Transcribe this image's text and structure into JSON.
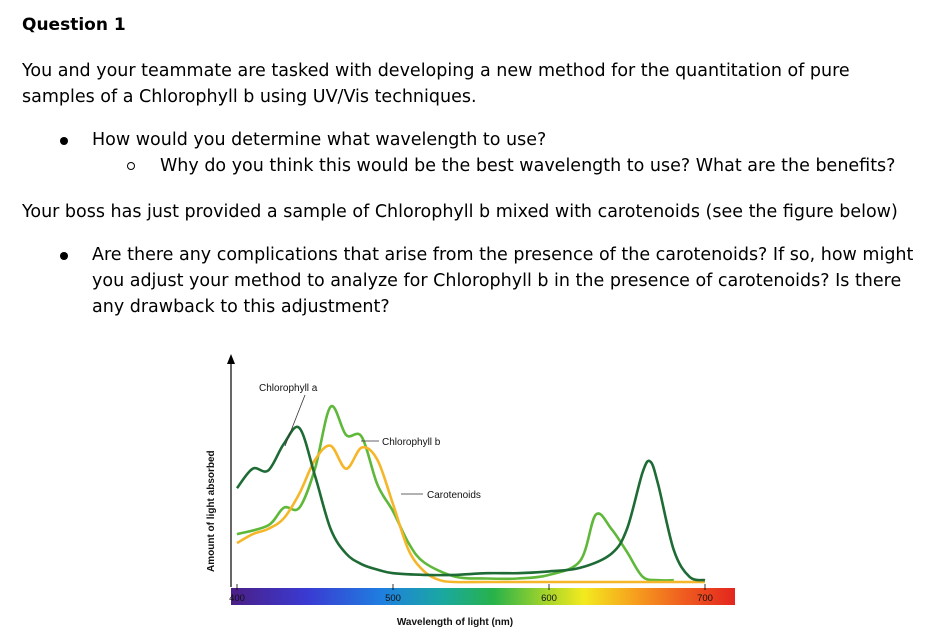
{
  "question": {
    "heading": "Question 1",
    "intro": "You and your teammate are tasked with developing a new method for the quantitation of pure samples of a Chlorophyll b using UV/Vis techniques.",
    "bullet1": "How would you determine what wavelength to use?",
    "sub_bullet1": "Why do you think this would be the best wavelength to use?  What are the benefits?",
    "boss_text": "Your boss has just provided a sample of Chlorophyll b mixed with carotenoids (see the figure below)",
    "bullet2": "Are there any complications that arise from the presence of the carotenoids?  If so, how might you adjust your method to analyze for Chlorophyll b in the presence of carotenoids? Is there any drawback to this adjustment?"
  },
  "chart_data": {
    "type": "line",
    "xlabel": "Wavelength of light (nm)",
    "ylabel": "Amount of light absorbed",
    "xlim": [
      400,
      700
    ],
    "x_ticks": [
      "400",
      "500",
      "600",
      "700"
    ],
    "x_axis_spectrum_bar": true,
    "y_ticks": [],
    "grid": false,
    "annotations": [
      "Chlorophyll a",
      "Chlorophyll b",
      "Carotenoids"
    ],
    "series": [
      {
        "name": "Chlorophyll a",
        "color": "#1e6b35",
        "x": [
          400,
          410,
          420,
          430,
          440,
          450,
          460,
          470,
          480,
          490,
          500,
          520,
          540,
          560,
          580,
          600,
          620,
          640,
          650,
          660,
          665,
          670,
          680,
          690,
          700
        ],
        "y": [
          0.53,
          0.64,
          0.63,
          0.78,
          0.87,
          0.6,
          0.3,
          0.16,
          0.1,
          0.07,
          0.05,
          0.04,
          0.04,
          0.05,
          0.05,
          0.06,
          0.08,
          0.16,
          0.3,
          0.62,
          0.68,
          0.55,
          0.18,
          0.03,
          0.01
        ]
      },
      {
        "name": "Chlorophyll b",
        "color": "#5fb83a",
        "x": [
          400,
          420,
          430,
          440,
          450,
          460,
          470,
          480,
          490,
          500,
          510,
          520,
          540,
          560,
          580,
          600,
          620,
          630,
          640,
          650,
          660,
          670,
          680
        ],
        "y": [
          0.27,
          0.32,
          0.42,
          0.42,
          0.64,
          0.99,
          0.83,
          0.82,
          0.55,
          0.4,
          0.22,
          0.11,
          0.03,
          0.02,
          0.02,
          0.04,
          0.12,
          0.38,
          0.3,
          0.17,
          0.03,
          0.01,
          0.01
        ]
      },
      {
        "name": "Carotenoids",
        "color": "#f6b62a",
        "x": [
          400,
          410,
          420,
          430,
          440,
          450,
          460,
          470,
          480,
          490,
          500,
          510,
          520,
          530,
          540,
          560,
          600,
          650,
          700
        ],
        "y": [
          0.22,
          0.27,
          0.3,
          0.36,
          0.5,
          0.69,
          0.77,
          0.64,
          0.76,
          0.69,
          0.44,
          0.18,
          0.06,
          0.01,
          0.0,
          0.0,
          0.0,
          0.0,
          0.0
        ]
      }
    ]
  }
}
